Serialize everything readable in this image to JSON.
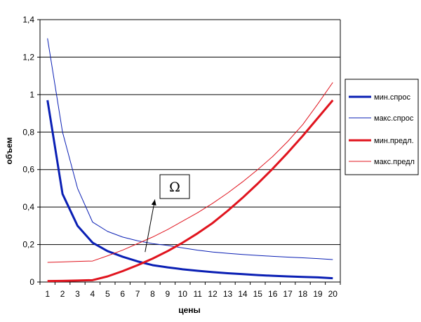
{
  "chart_data": {
    "type": "line",
    "title": "",
    "xlabel": "цены",
    "ylabel": "объем",
    "x": [
      1,
      2,
      3,
      4,
      5,
      6,
      7,
      8,
      9,
      10,
      11,
      12,
      13,
      14,
      15,
      16,
      17,
      18,
      19,
      20
    ],
    "xlim": [
      1,
      20
    ],
    "ylim": [
      0,
      1.4
    ],
    "y_ticks": [
      "0",
      "0,2",
      "0,4",
      "0,6",
      "0,8",
      "1",
      "1,2",
      "1,4"
    ],
    "y_tick_values": [
      0,
      0.2,
      0.4,
      0.6,
      0.8,
      1.0,
      1.2,
      1.4
    ],
    "grid": true,
    "legend_position": "right",
    "series": [
      {
        "name": "мин.спрос",
        "color": "#0a1fb4",
        "thick": true,
        "values": [
          0.97,
          0.47,
          0.3,
          0.21,
          0.165,
          0.135,
          0.11,
          0.09,
          0.078,
          0.068,
          0.06,
          0.053,
          0.047,
          0.042,
          0.037,
          0.033,
          0.03,
          0.027,
          0.025,
          0.02
        ]
      },
      {
        "name": "макс.спрос",
        "color": "#0a1fb4",
        "thick": false,
        "values": [
          1.3,
          0.8,
          0.5,
          0.32,
          0.27,
          0.24,
          0.22,
          0.205,
          0.195,
          0.182,
          0.17,
          0.16,
          0.153,
          0.147,
          0.142,
          0.137,
          0.133,
          0.129,
          0.125,
          0.12
        ]
      },
      {
        "name": "мин.предл.",
        "color": "#e0141e",
        "thick": true,
        "values": [
          0.005,
          0.006,
          0.008,
          0.01,
          0.03,
          0.058,
          0.09,
          0.125,
          0.165,
          0.21,
          0.26,
          0.315,
          0.38,
          0.45,
          0.525,
          0.605,
          0.69,
          0.78,
          0.875,
          0.97
        ]
      },
      {
        "name": "макс.предл",
        "color": "#e0141e",
        "thick": false,
        "values": [
          0.105,
          0.107,
          0.11,
          0.112,
          0.14,
          0.17,
          0.205,
          0.24,
          0.28,
          0.325,
          0.37,
          0.42,
          0.475,
          0.535,
          0.6,
          0.67,
          0.75,
          0.84,
          0.95,
          1.065
        ]
      }
    ],
    "annotation": {
      "label": "Ω",
      "x": 7.2,
      "y": 0.44
    }
  }
}
